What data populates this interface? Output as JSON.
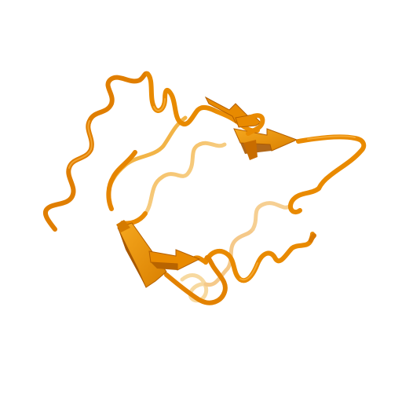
{
  "scene": {
    "subject": "protein-ribbon-model",
    "background_color": "#ffffff",
    "colors": {
      "ribbon_main": "#E98A00",
      "ribbon_light": "#F4AA1E",
      "ribbon_dark": "#B45F00",
      "ribbon_far": "#F7D9A0",
      "sheet_face": "#F09A10",
      "sheet_shadow": "#A85800"
    }
  }
}
